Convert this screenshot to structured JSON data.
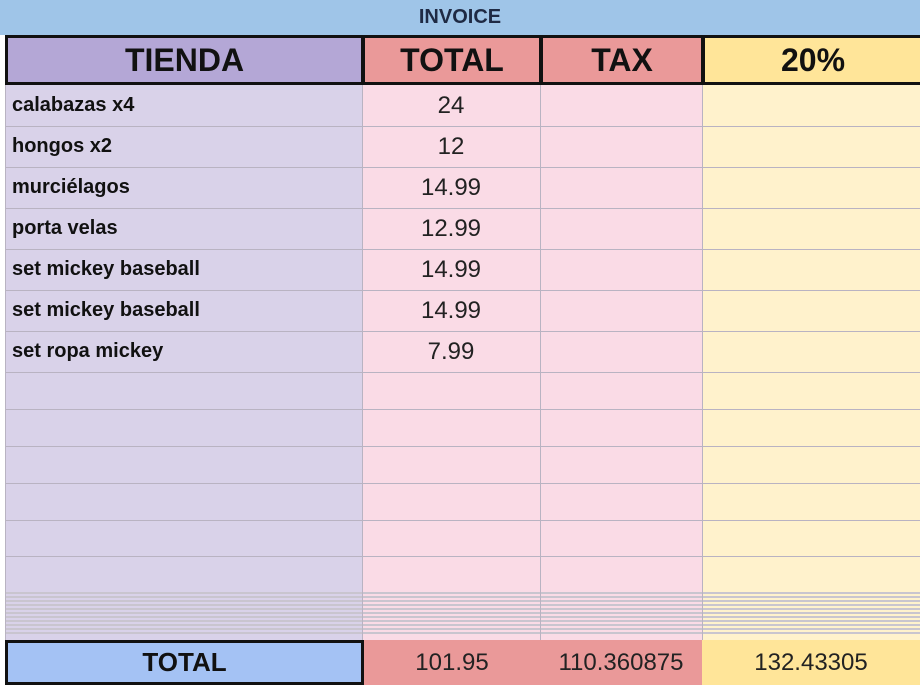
{
  "title": "INVOICE",
  "headers": {
    "store": "TIENDA",
    "total": "TOTAL",
    "tax": "TAX",
    "percent": "20%"
  },
  "rows": [
    {
      "item": "calabazas x4",
      "total": "24"
    },
    {
      "item": "hongos x2",
      "total": "12"
    },
    {
      "item": "murciélagos",
      "total": "14.99"
    },
    {
      "item": "porta velas",
      "total": "12.99"
    },
    {
      "item": "set mickey baseball",
      "total": "14.99"
    },
    {
      "item": "set mickey baseball",
      "total": "14.99"
    },
    {
      "item": "set ropa mickey",
      "total": "7.99"
    }
  ],
  "totals": {
    "label": "TOTAL",
    "total": "101.95",
    "tax": "110.360875",
    "percent": "132.43305"
  },
  "colors": {
    "title_bg": "#9fc5e8",
    "store_header": "#b4a7d6",
    "store_body": "#d9d2e9",
    "total_header": "#ea9999",
    "total_body": "#fadbe6",
    "percent_header": "#ffe599",
    "percent_body": "#fff2cc",
    "totals_label_bg": "#a4c2f4"
  }
}
